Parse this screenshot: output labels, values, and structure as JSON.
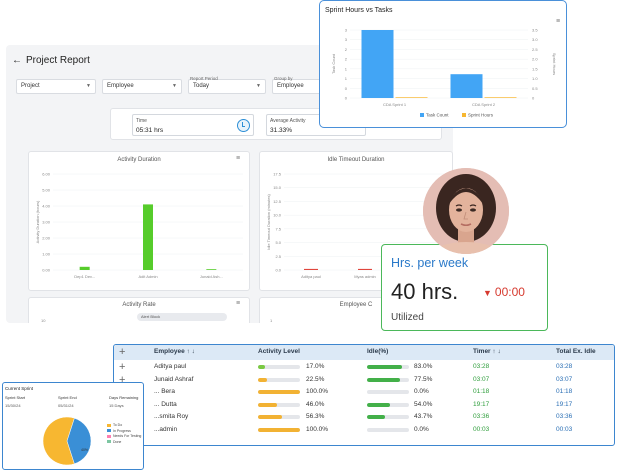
{
  "report": {
    "back_arrow": "←",
    "title": "Project Report",
    "filters": [
      {
        "label": "",
        "value": "Project"
      },
      {
        "label": "",
        "value": "Employee"
      },
      {
        "label": "Report Period",
        "value": "Today"
      },
      {
        "label": "Group by",
        "value": "Employee"
      }
    ],
    "hint_text": "",
    "time_stat": {
      "label": "Time",
      "value": "05:31 hrs"
    },
    "avg_stat": {
      "label": "Average Activity",
      "value": "31.33%"
    },
    "activity_duration": {
      "title": "Activity Duration",
      "ylabel": "Activity Duration (hours)",
      "yticks": [
        "6.00",
        "5.00",
        "4.00",
        "3.00",
        "2.00",
        "1.00",
        "0.00"
      ]
    },
    "idle_timeout": {
      "title": "Idle Timeout Duration",
      "ylabel": "Idle Timeout Duration (minutes)",
      "yticks": [
        "17.5",
        "15.0",
        "12.5",
        "10.0",
        "7.5",
        "5.0",
        "2.5",
        "0.0"
      ]
    },
    "activity_rate": {
      "title": "Activity Rate",
      "pill": "Alert Block",
      "ytick": "10"
    },
    "employee_card": {
      "title": "Employee C",
      "ytick": "1"
    }
  },
  "sprint_popover": {
    "title": "Sprint Hours vs Tasks",
    "left_axis_label": "Task Count",
    "right_axis_label": "Sprint Hours",
    "left_ticks": [
      "3",
      "3",
      "2",
      "2",
      "1",
      "1",
      "0",
      "0"
    ],
    "right_ticks": [
      "3.5",
      "3.0",
      "2.5",
      "2.0",
      "1.5",
      "1.0",
      "0.5",
      "0"
    ]
  },
  "hrs_card": {
    "title": "Hrs. per week",
    "value": "40 hrs.",
    "timer_icon": "caret-down-icon",
    "timer": "00:00",
    "subtitle": "Utilized"
  },
  "employee_table": {
    "expand_symbol": "+",
    "headers": {
      "employee": "Employee ↑ ↓",
      "activity": "Activity Level",
      "idle": "Idle(%)",
      "timer": "Timer ↑ ↓",
      "total": "Total Ex. Idle"
    },
    "rows": [
      {
        "name": "Aditya paul",
        "activity": "17.0%",
        "activity_pct": 17.0,
        "idle": "83.0%",
        "idle_pct": 83.0,
        "timer": "03:28",
        "total": "03:28"
      },
      {
        "name": "Junaid Ashraf",
        "activity": "22.5%",
        "activity_pct": 22.5,
        "idle": "77.5%",
        "idle_pct": 77.5,
        "timer": "03:07",
        "total": "03:07"
      },
      {
        "name": "... Bera",
        "activity": "100.0%",
        "activity_pct": 100.0,
        "idle": "0.0%",
        "idle_pct": 0.0,
        "timer": "01:18",
        "total": "01:18"
      },
      {
        "name": "... Dutta",
        "activity": "46.0%",
        "activity_pct": 46.0,
        "idle": "54.0%",
        "idle_pct": 54.0,
        "timer": "19:17",
        "total": "19:17"
      },
      {
        "name": "...smita Roy",
        "activity": "56.3%",
        "activity_pct": 56.3,
        "idle": "43.7%",
        "idle_pct": 43.7,
        "timer": "03:36",
        "total": "03:36"
      },
      {
        "name": "...admin",
        "activity": "100.0%",
        "activity_pct": 100.0,
        "idle": "0.0%",
        "idle_pct": 0.0,
        "timer": "00:03",
        "total": "00:03"
      }
    ],
    "colors": {
      "activity_fill": "#f2b233",
      "activity_low": "#7ac943",
      "idle_fill": "#43b049",
      "track": "#e4e6ea"
    }
  },
  "current_sprint": {
    "title": "Current Sprint",
    "fields": [
      {
        "label": "Sprint Start",
        "value": "15/30/24"
      },
      {
        "label": "Sprint End",
        "value": "05/31/24"
      },
      {
        "label": "Days Remaining",
        "value": "15 Days"
      }
    ],
    "pie_value_label": "40%",
    "legend": [
      {
        "label": "To Do",
        "color": "#f7b731"
      },
      {
        "label": "In Progress",
        "color": "#3a8fd6"
      },
      {
        "label": "Needs For Testing",
        "color": "#ff7fb0"
      },
      {
        "label": "Done",
        "color": "#7dc6a2"
      }
    ]
  },
  "chart_data": [
    {
      "type": "bar",
      "title": "Activity Duration",
      "ylabel": "Activity Duration (hours)",
      "categories": [
        "Dep1 Dev...",
        "Adit Admin",
        "Junaid Ash..."
      ],
      "values": [
        0.2,
        4.1,
        0.05
      ],
      "ylim": [
        0,
        6
      ],
      "color": "#56cc2b"
    },
    {
      "type": "bar",
      "title": "Idle Timeout Duration",
      "ylabel": "Idle Timeout Duration (minutes)",
      "categories": [
        "Aditya paul",
        "Myas admin",
        "Junaid Ash..."
      ],
      "values": [
        0.2,
        0.2,
        0.2
      ],
      "ylim": [
        0,
        17.5
      ],
      "color": "#e0463d"
    },
    {
      "type": "bar",
      "title": "Sprint Hours vs Tasks",
      "categories": [
        "CDA Sprint 1",
        "CDA Sprint 2"
      ],
      "series": [
        {
          "name": "Task Count",
          "values": [
            3,
            1.05
          ],
          "color": "#42a5f5"
        },
        {
          "name": "Sprint Hours",
          "values": [
            0.03,
            0.03
          ],
          "color": "#f7b731"
        }
      ],
      "ylim": [
        0,
        3
      ],
      "y2lim": [
        0,
        3.5
      ]
    },
    {
      "type": "pie",
      "title": "Current Sprint",
      "categories": [
        "To Do",
        "In Progress",
        "Needs For Testing",
        "Done"
      ],
      "values": [
        60,
        40,
        0,
        0
      ],
      "colors": [
        "#f7b731",
        "#3a8fd6",
        "#ff7fb0",
        "#7dc6a2"
      ]
    }
  ]
}
